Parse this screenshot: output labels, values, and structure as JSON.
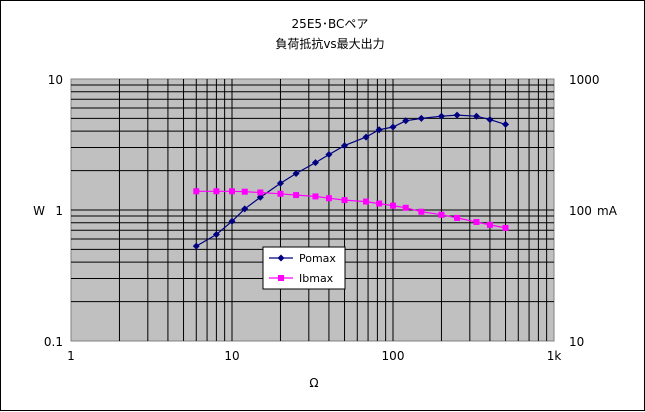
{
  "chart_data": {
    "type": "line",
    "title": "25E5･BCペア",
    "subtitle": "負荷抵抗vs最大出力",
    "xlabel": "Ω",
    "ylabel": "W",
    "y2label": "mA",
    "x_scale": "log",
    "y_scale": "log",
    "y2_scale": "log",
    "xlim": [
      1,
      1000
    ],
    "ylim": [
      0.1,
      10
    ],
    "y2lim": [
      10,
      1000
    ],
    "x_tick_labels": [
      "1",
      "10",
      "100",
      "1k"
    ],
    "y_tick_labels": [
      "0.1",
      "1",
      "10"
    ],
    "y2_tick_labels": [
      "10",
      "100",
      "1000"
    ],
    "grid": true,
    "legend_position": "center",
    "plot_background": "#c0c0c0",
    "series": [
      {
        "name": "Pomax",
        "axis": "left",
        "color": "#000080",
        "marker": "diamond",
        "x": [
          6,
          8,
          10,
          12,
          15,
          20,
          25,
          33,
          40,
          50,
          68,
          82,
          100,
          120,
          150,
          200,
          250,
          330,
          400,
          500
        ],
        "y": [
          0.53,
          0.65,
          0.82,
          1.02,
          1.25,
          1.6,
          1.9,
          2.3,
          2.65,
          3.1,
          3.6,
          4.1,
          4.3,
          4.8,
          5.0,
          5.2,
          5.3,
          5.2,
          4.9,
          4.5
        ]
      },
      {
        "name": "Ibmax",
        "axis": "right",
        "color": "#ff00ff",
        "marker": "square",
        "x": [
          6,
          8,
          10,
          12,
          15,
          20,
          25,
          33,
          40,
          50,
          68,
          82,
          100,
          120,
          150,
          200,
          250,
          330,
          400,
          500
        ],
        "y": [
          139,
          139,
          139,
          138,
          136,
          133,
          130,
          127,
          123,
          119,
          116,
          112,
          108,
          104,
          97,
          92,
          87,
          81,
          77,
          73
        ]
      }
    ]
  }
}
